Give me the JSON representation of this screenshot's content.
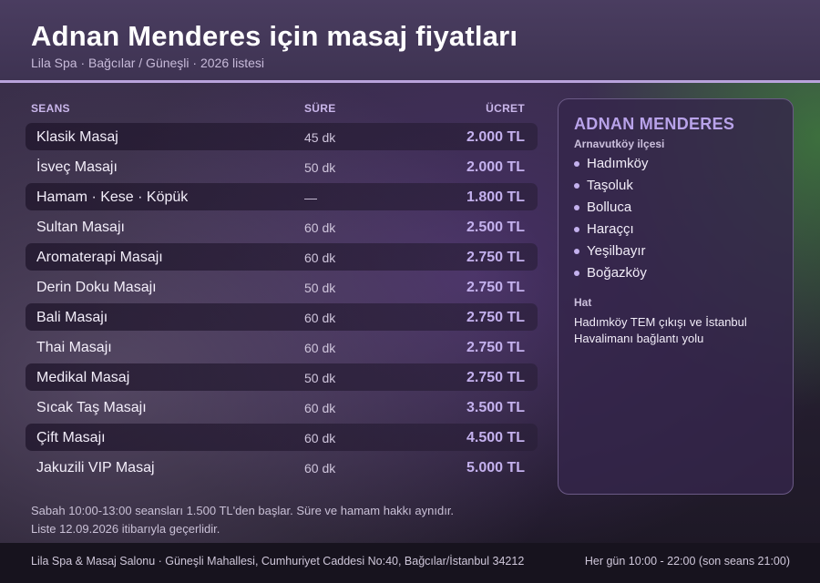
{
  "header": {
    "title": "Adnan Menderes için masaj fiyatları",
    "subtitle": "Lila Spa · Bağcılar / Güneşli · 2026 listesi"
  },
  "table": {
    "columns": [
      "SEANS",
      "SÜRE",
      "ÜCRET"
    ],
    "rows": [
      {
        "name": "Klasik Masaj",
        "duration": "45 dk",
        "price": "2.000 TL",
        "shaded": true
      },
      {
        "name": "İsveç Masajı",
        "duration": "50 dk",
        "price": "2.000 TL",
        "shaded": false
      },
      {
        "name": "Hamam · Kese · Köpük",
        "duration": "—",
        "price": "1.800 TL",
        "shaded": true
      },
      {
        "name": "Sultan Masajı",
        "duration": "60 dk",
        "price": "2.500 TL",
        "shaded": false
      },
      {
        "name": "Aromaterapi Masajı",
        "duration": "60 dk",
        "price": "2.750 TL",
        "shaded": true
      },
      {
        "name": "Derin Doku Masajı",
        "duration": "50 dk",
        "price": "2.750 TL",
        "shaded": false
      },
      {
        "name": "Bali Masajı",
        "duration": "60 dk",
        "price": "2.750 TL",
        "shaded": true
      },
      {
        "name": "Thai Masajı",
        "duration": "60 dk",
        "price": "2.750 TL",
        "shaded": false
      },
      {
        "name": "Medikal Masaj",
        "duration": "50 dk",
        "price": "2.750 TL",
        "shaded": true
      },
      {
        "name": "Sıcak Taş Masajı",
        "duration": "60 dk",
        "price": "3.500 TL",
        "shaded": false
      },
      {
        "name": "Çift Masajı",
        "duration": "60 dk",
        "price": "4.500 TL",
        "shaded": true
      },
      {
        "name": "Jakuzili VIP Masaj",
        "duration": "60 dk",
        "price": "5.000 TL",
        "shaded": false
      }
    ]
  },
  "panel": {
    "title": "ADNAN MENDERES",
    "district": "Arnavutköy ilçesi",
    "neighborhoods": [
      "Hadımköy",
      "Taşoluk",
      "Bolluca",
      "Haraççı",
      "Yeşilbayır",
      "Boğazköy"
    ],
    "hat_label": "Hat",
    "hat_text": "Hadımköy TEM çıkışı ve İstanbul Havalimanı bağlantı yolu"
  },
  "notes": [
    "Sabah 10:00-13:00 seansları 1.500 TL'den başlar. Süre ve hamam hakkı aynıdır.",
    "Liste 12.09.2026 itibarıyla geçerlidir."
  ],
  "footer": {
    "address": "Lila Spa & Masaj Salonu · Güneşli Mahallesi, Cumhuriyet Caddesi No:40, Bağcılar/İstanbul 34212",
    "hours": "Her gün 10:00 - 22:00 (son seans 21:00)"
  },
  "colors": {
    "accent": "#b9a3dc",
    "price": "#c4b1ee",
    "header_bg": "#4a3d60",
    "footer_bg": "#17131e"
  }
}
